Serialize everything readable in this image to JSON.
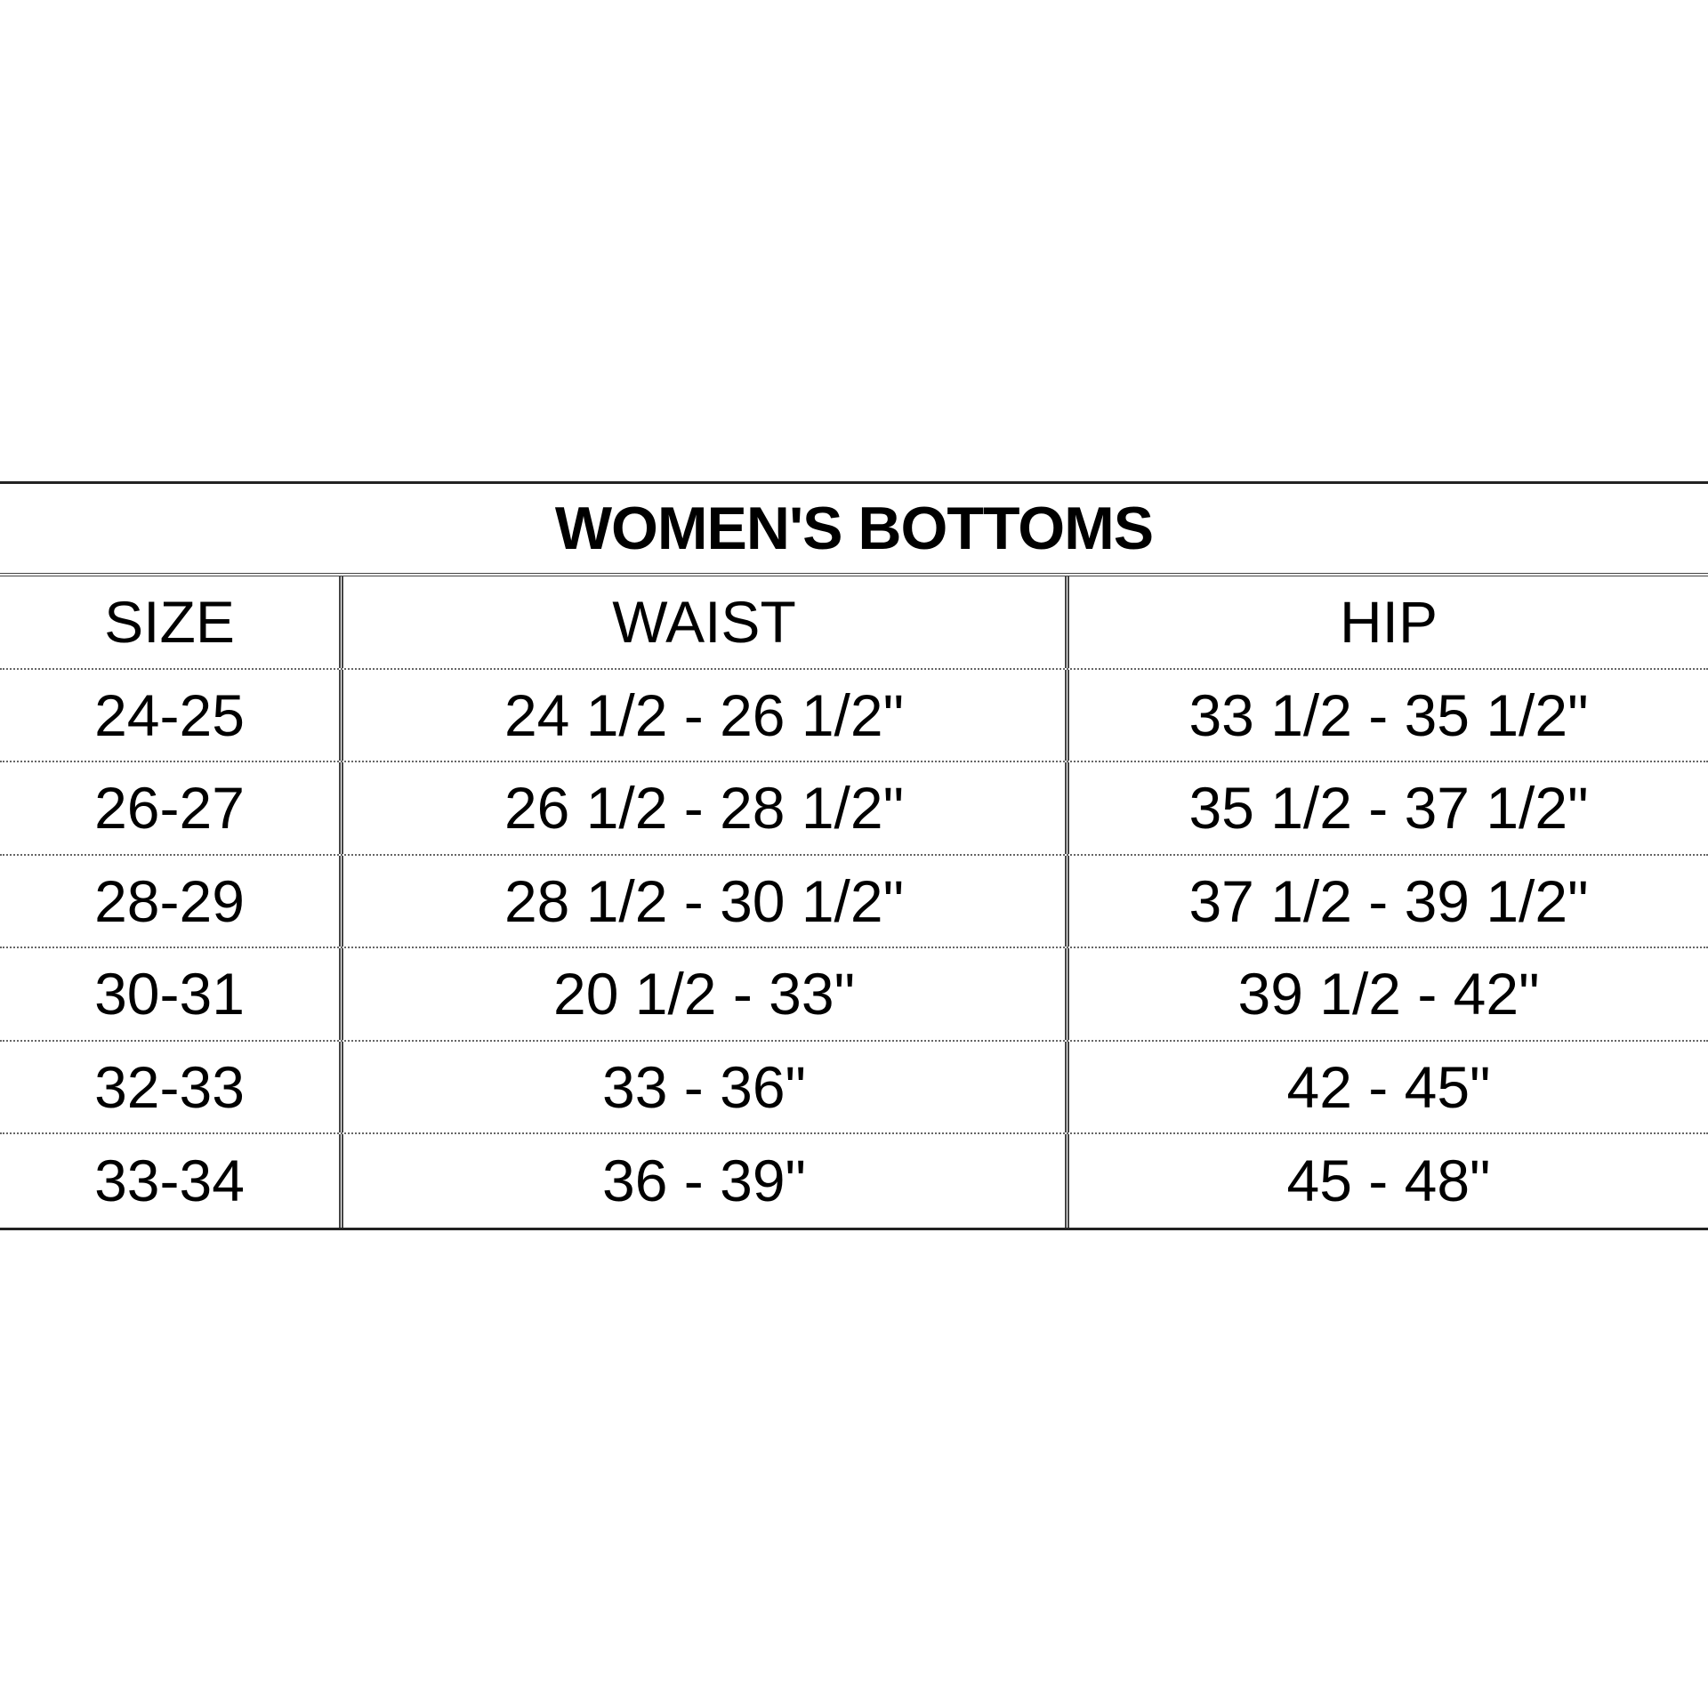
{
  "title": "WOMEN'S BOTTOMS",
  "headers": [
    "SIZE",
    "WAIST",
    "HIP"
  ],
  "rows": [
    [
      "24-25",
      "24 1/2 - 26 1/2\"",
      "33 1/2 - 35 1/2\""
    ],
    [
      "26-27",
      "26 1/2 - 28 1/2\"",
      "35 1/2 - 37 1/2\""
    ],
    [
      "28-29",
      "28 1/2 - 30 1/2\"",
      "37 1/2 - 39 1/2\""
    ],
    [
      "30-31",
      "20 1/2 - 33\"",
      "39 1/2 - 42\""
    ],
    [
      "32-33",
      "33 - 36\"",
      "42 - 45\""
    ],
    [
      "33-34",
      "36 - 39\"",
      "45 - 48\""
    ]
  ]
}
